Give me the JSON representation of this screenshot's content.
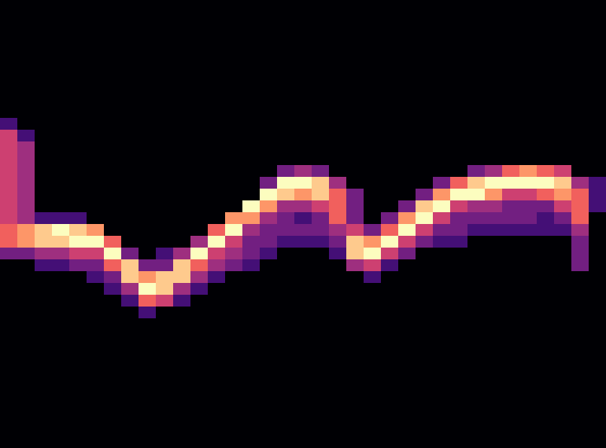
{
  "chart_data": {
    "type": "heatmap",
    "zlim": [
      0,
      9
    ],
    "tick_labels": false,
    "cells": [
      [
        0,
        0,
        0,
        0,
        0,
        0,
        0,
        0,
        0,
        0,
        0,
        0,
        0,
        0,
        0,
        0,
        0,
        0,
        0,
        0,
        0,
        0,
        0,
        0,
        0,
        0,
        0,
        0,
        0,
        0,
        0,
        0,
        0,
        0,
        0
      ],
      [
        0,
        0,
        0,
        0,
        0,
        0,
        0,
        0,
        0,
        0,
        0,
        0,
        0,
        0,
        0,
        0,
        0,
        0,
        0,
        0,
        0,
        0,
        0,
        0,
        0,
        0,
        0,
        0,
        0,
        0,
        0,
        0,
        0,
        0,
        0
      ],
      [
        0,
        0,
        0,
        0,
        0,
        0,
        0,
        0,
        0,
        0,
        0,
        0,
        0,
        0,
        0,
        0,
        0,
        0,
        0,
        0,
        0,
        0,
        0,
        0,
        0,
        0,
        0,
        0,
        0,
        0,
        0,
        0,
        0,
        0,
        0
      ],
      [
        0,
        0,
        0,
        0,
        0,
        0,
        0,
        0,
        0,
        0,
        0,
        0,
        0,
        0,
        0,
        0,
        0,
        0,
        0,
        0,
        0,
        0,
        0,
        0,
        0,
        0,
        0,
        0,
        0,
        0,
        0,
        0,
        0,
        0,
        0
      ],
      [
        0,
        0,
        0,
        0,
        0,
        0,
        0,
        0,
        0,
        0,
        0,
        0,
        0,
        0,
        0,
        0,
        0,
        0,
        0,
        0,
        0,
        0,
        0,
        0,
        0,
        0,
        0,
        0,
        0,
        0,
        0,
        0,
        0,
        0,
        0
      ],
      [
        0,
        0,
        0,
        0,
        0,
        0,
        0,
        0,
        0,
        0,
        0,
        0,
        0,
        0,
        0,
        0,
        0,
        0,
        0,
        0,
        0,
        0,
        0,
        0,
        0,
        0,
        0,
        0,
        0,
        0,
        0,
        0,
        0,
        0,
        0
      ],
      [
        0,
        0,
        0,
        0,
        0,
        0,
        0,
        0,
        0,
        0,
        0,
        0,
        0,
        0,
        0,
        0,
        0,
        0,
        0,
        0,
        0,
        0,
        0,
        0,
        0,
        0,
        0,
        0,
        0,
        0,
        0,
        0,
        0,
        0,
        0
      ],
      [
        0,
        0,
        0,
        0,
        0,
        0,
        0,
        0,
        0,
        0,
        0,
        0,
        0,
        0,
        0,
        0,
        0,
        0,
        0,
        0,
        0,
        0,
        0,
        0,
        0,
        0,
        0,
        0,
        0,
        0,
        0,
        0,
        0,
        0,
        0
      ],
      [
        0,
        0,
        0,
        0,
        0,
        0,
        0,
        0,
        0,
        0,
        0,
        0,
        0,
        0,
        0,
        0,
        0,
        0,
        0,
        0,
        0,
        0,
        0,
        0,
        0,
        0,
        0,
        0,
        0,
        0,
        0,
        0,
        0,
        0,
        0
      ],
      [
        0,
        0,
        0,
        0,
        0,
        0,
        0,
        0,
        0,
        0,
        0,
        0,
        0,
        0,
        0,
        0,
        0,
        0,
        0,
        0,
        0,
        0,
        0,
        0,
        0,
        0,
        0,
        0,
        0,
        0,
        0,
        0,
        0,
        0,
        0
      ],
      [
        2,
        0,
        0,
        0,
        0,
        0,
        0,
        0,
        0,
        0,
        0,
        0,
        0,
        0,
        0,
        0,
        0,
        0,
        0,
        0,
        0,
        0,
        0,
        0,
        0,
        0,
        0,
        0,
        0,
        0,
        0,
        0,
        0,
        0,
        0
      ],
      [
        5,
        2,
        0,
        0,
        0,
        0,
        0,
        0,
        0,
        0,
        0,
        0,
        0,
        0,
        0,
        0,
        0,
        0,
        0,
        0,
        0,
        0,
        0,
        0,
        0,
        0,
        0,
        0,
        0,
        0,
        0,
        0,
        0,
        0,
        0
      ],
      [
        5,
        4,
        0,
        0,
        0,
        0,
        0,
        0,
        0,
        0,
        0,
        0,
        0,
        0,
        0,
        0,
        0,
        0,
        0,
        0,
        0,
        0,
        0,
        0,
        0,
        0,
        0,
        0,
        0,
        0,
        0,
        0,
        0,
        0,
        0
      ],
      [
        5,
        4,
        0,
        0,
        0,
        0,
        0,
        0,
        0,
        0,
        0,
        0,
        0,
        0,
        0,
        0,
        0,
        0,
        0,
        0,
        0,
        0,
        0,
        0,
        0,
        0,
        0,
        0,
        0,
        0,
        0,
        0,
        0,
        0,
        0
      ],
      [
        5,
        4,
        0,
        0,
        0,
        0,
        0,
        0,
        0,
        0,
        0,
        0,
        0,
        0,
        0,
        0,
        3,
        4,
        3,
        0,
        0,
        0,
        0,
        0,
        0,
        0,
        0,
        3,
        4,
        6,
        7,
        6,
        5,
        0,
        0
      ],
      [
        5,
        4,
        0,
        0,
        0,
        0,
        0,
        0,
        0,
        0,
        0,
        0,
        0,
        0,
        0,
        3,
        9,
        9,
        8,
        4,
        0,
        0,
        0,
        0,
        0,
        3,
        6,
        8,
        9,
        9,
        9,
        9,
        8,
        4,
        2
      ],
      [
        5,
        4,
        0,
        0,
        0,
        0,
        0,
        0,
        0,
        0,
        0,
        0,
        0,
        0,
        0,
        9,
        8,
        7,
        8,
        6,
        3,
        0,
        0,
        0,
        3,
        7,
        9,
        9,
        7,
        5,
        5,
        6,
        7,
        6,
        2
      ],
      [
        5,
        4,
        0,
        0,
        0,
        0,
        0,
        0,
        0,
        0,
        0,
        0,
        0,
        0,
        9,
        7,
        4,
        4,
        5,
        6,
        3,
        0,
        0,
        3,
        8,
        9,
        5,
        4,
        4,
        3,
        3,
        3,
        5,
        6,
        2
      ],
      [
        5,
        4,
        2,
        2,
        2,
        0,
        0,
        0,
        0,
        0,
        0,
        0,
        0,
        7,
        7,
        4,
        3,
        2,
        3,
        6,
        3,
        0,
        3,
        7,
        9,
        5,
        3,
        3,
        3,
        3,
        3,
        2,
        3,
        6,
        0
      ],
      [
        6,
        7,
        8,
        9,
        8,
        7,
        0,
        0,
        0,
        0,
        0,
        0,
        6,
        9,
        4,
        3,
        3,
        3,
        3,
        4,
        5,
        3,
        6,
        9,
        5,
        3,
        3,
        2,
        2,
        2,
        2,
        2,
        2,
        4,
        0
      ],
      [
        6,
        7,
        8,
        8,
        9,
        9,
        6,
        0,
        0,
        0,
        0,
        4,
        9,
        5,
        3,
        3,
        2,
        2,
        2,
        3,
        8,
        7,
        9,
        5,
        3,
        2,
        2,
        0,
        0,
        0,
        0,
        0,
        0,
        3,
        0
      ],
      [
        3,
        3,
        4,
        4,
        5,
        5,
        9,
        3,
        0,
        2,
        4,
        9,
        5,
        4,
        3,
        2,
        0,
        0,
        0,
        2,
        8,
        9,
        5,
        3,
        0,
        0,
        0,
        0,
        0,
        0,
        0,
        0,
        0,
        3,
        0
      ],
      [
        0,
        0,
        2,
        2,
        3,
        3,
        6,
        8,
        3,
        3,
        8,
        6,
        4,
        3,
        2,
        0,
        0,
        0,
        0,
        0,
        4,
        5,
        2,
        0,
        0,
        0,
        0,
        0,
        0,
        0,
        0,
        0,
        0,
        3,
        0
      ],
      [
        0,
        0,
        0,
        0,
        0,
        2,
        3,
        8,
        7,
        8,
        8,
        4,
        2,
        0,
        0,
        0,
        0,
        0,
        0,
        0,
        0,
        2,
        0,
        0,
        0,
        0,
        0,
        0,
        0,
        0,
        0,
        0,
        0,
        0,
        0
      ],
      [
        0,
        0,
        0,
        0,
        0,
        0,
        2,
        4,
        9,
        8,
        4,
        2,
        0,
        0,
        0,
        0,
        0,
        0,
        0,
        0,
        0,
        0,
        0,
        0,
        0,
        0,
        0,
        0,
        0,
        0,
        0,
        0,
        0,
        0,
        0
      ],
      [
        0,
        0,
        0,
        0,
        0,
        0,
        0,
        2,
        6,
        5,
        2,
        0,
        0,
        0,
        0,
        0,
        0,
        0,
        0,
        0,
        0,
        0,
        0,
        0,
        0,
        0,
        0,
        0,
        0,
        0,
        0,
        0,
        0,
        0,
        0
      ],
      [
        0,
        0,
        0,
        0,
        0,
        0,
        0,
        0,
        2,
        0,
        0,
        0,
        0,
        0,
        0,
        0,
        0,
        0,
        0,
        0,
        0,
        0,
        0,
        0,
        0,
        0,
        0,
        0,
        0,
        0,
        0,
        0,
        0,
        0,
        0
      ],
      [
        0,
        0,
        0,
        0,
        0,
        0,
        0,
        0,
        0,
        0,
        0,
        0,
        0,
        0,
        0,
        0,
        0,
        0,
        0,
        0,
        0,
        0,
        0,
        0,
        0,
        0,
        0,
        0,
        0,
        0,
        0,
        0,
        0,
        0,
        0
      ],
      [
        0,
        0,
        0,
        0,
        0,
        0,
        0,
        0,
        0,
        0,
        0,
        0,
        0,
        0,
        0,
        0,
        0,
        0,
        0,
        0,
        0,
        0,
        0,
        0,
        0,
        0,
        0,
        0,
        0,
        0,
        0,
        0,
        0,
        0,
        0
      ],
      [
        0,
        0,
        0,
        0,
        0,
        0,
        0,
        0,
        0,
        0,
        0,
        0,
        0,
        0,
        0,
        0,
        0,
        0,
        0,
        0,
        0,
        0,
        0,
        0,
        0,
        0,
        0,
        0,
        0,
        0,
        0,
        0,
        0,
        0,
        0
      ],
      [
        0,
        0,
        0,
        0,
        0,
        0,
        0,
        0,
        0,
        0,
        0,
        0,
        0,
        0,
        0,
        0,
        0,
        0,
        0,
        0,
        0,
        0,
        0,
        0,
        0,
        0,
        0,
        0,
        0,
        0,
        0,
        0,
        0,
        0,
        0
      ],
      [
        0,
        0,
        0,
        0,
        0,
        0,
        0,
        0,
        0,
        0,
        0,
        0,
        0,
        0,
        0,
        0,
        0,
        0,
        0,
        0,
        0,
        0,
        0,
        0,
        0,
        0,
        0,
        0,
        0,
        0,
        0,
        0,
        0,
        0,
        0
      ],
      [
        0,
        0,
        0,
        0,
        0,
        0,
        0,
        0,
        0,
        0,
        0,
        0,
        0,
        0,
        0,
        0,
        0,
        0,
        0,
        0,
        0,
        0,
        0,
        0,
        0,
        0,
        0,
        0,
        0,
        0,
        0,
        0,
        0,
        0,
        0
      ],
      [
        0,
        0,
        0,
        0,
        0,
        0,
        0,
        0,
        0,
        0,
        0,
        0,
        0,
        0,
        0,
        0,
        0,
        0,
        0,
        0,
        0,
        0,
        0,
        0,
        0,
        0,
        0,
        0,
        0,
        0,
        0,
        0,
        0,
        0,
        0
      ],
      [
        0,
        0,
        0,
        0,
        0,
        0,
        0,
        0,
        0,
        0,
        0,
        0,
        0,
        0,
        0,
        0,
        0,
        0,
        0,
        0,
        0,
        0,
        0,
        0,
        0,
        0,
        0,
        0,
        0,
        0,
        0,
        0,
        0,
        0,
        0
      ],
      [
        0,
        0,
        0,
        0,
        0,
        0,
        0,
        0,
        0,
        0,
        0,
        0,
        0,
        0,
        0,
        0,
        0,
        0,
        0,
        0,
        0,
        0,
        0,
        0,
        0,
        0,
        0,
        0,
        0,
        0,
        0,
        0,
        0,
        0,
        0
      ],
      [
        0,
        0,
        0,
        0,
        0,
        0,
        0,
        0,
        0,
        0,
        0,
        0,
        0,
        0,
        0,
        0,
        0,
        0,
        0,
        0,
        0,
        0,
        0,
        0,
        0,
        0,
        0,
        0,
        0,
        0,
        0,
        0,
        0,
        0,
        0
      ],
      [
        0,
        0,
        0,
        0,
        0,
        0,
        0,
        0,
        0,
        0,
        0,
        0,
        0,
        0,
        0,
        0,
        0,
        0,
        0,
        0,
        0,
        0,
        0,
        0,
        0,
        0,
        0,
        0,
        0,
        0,
        0,
        0,
        0,
        0,
        0
      ]
    ]
  }
}
